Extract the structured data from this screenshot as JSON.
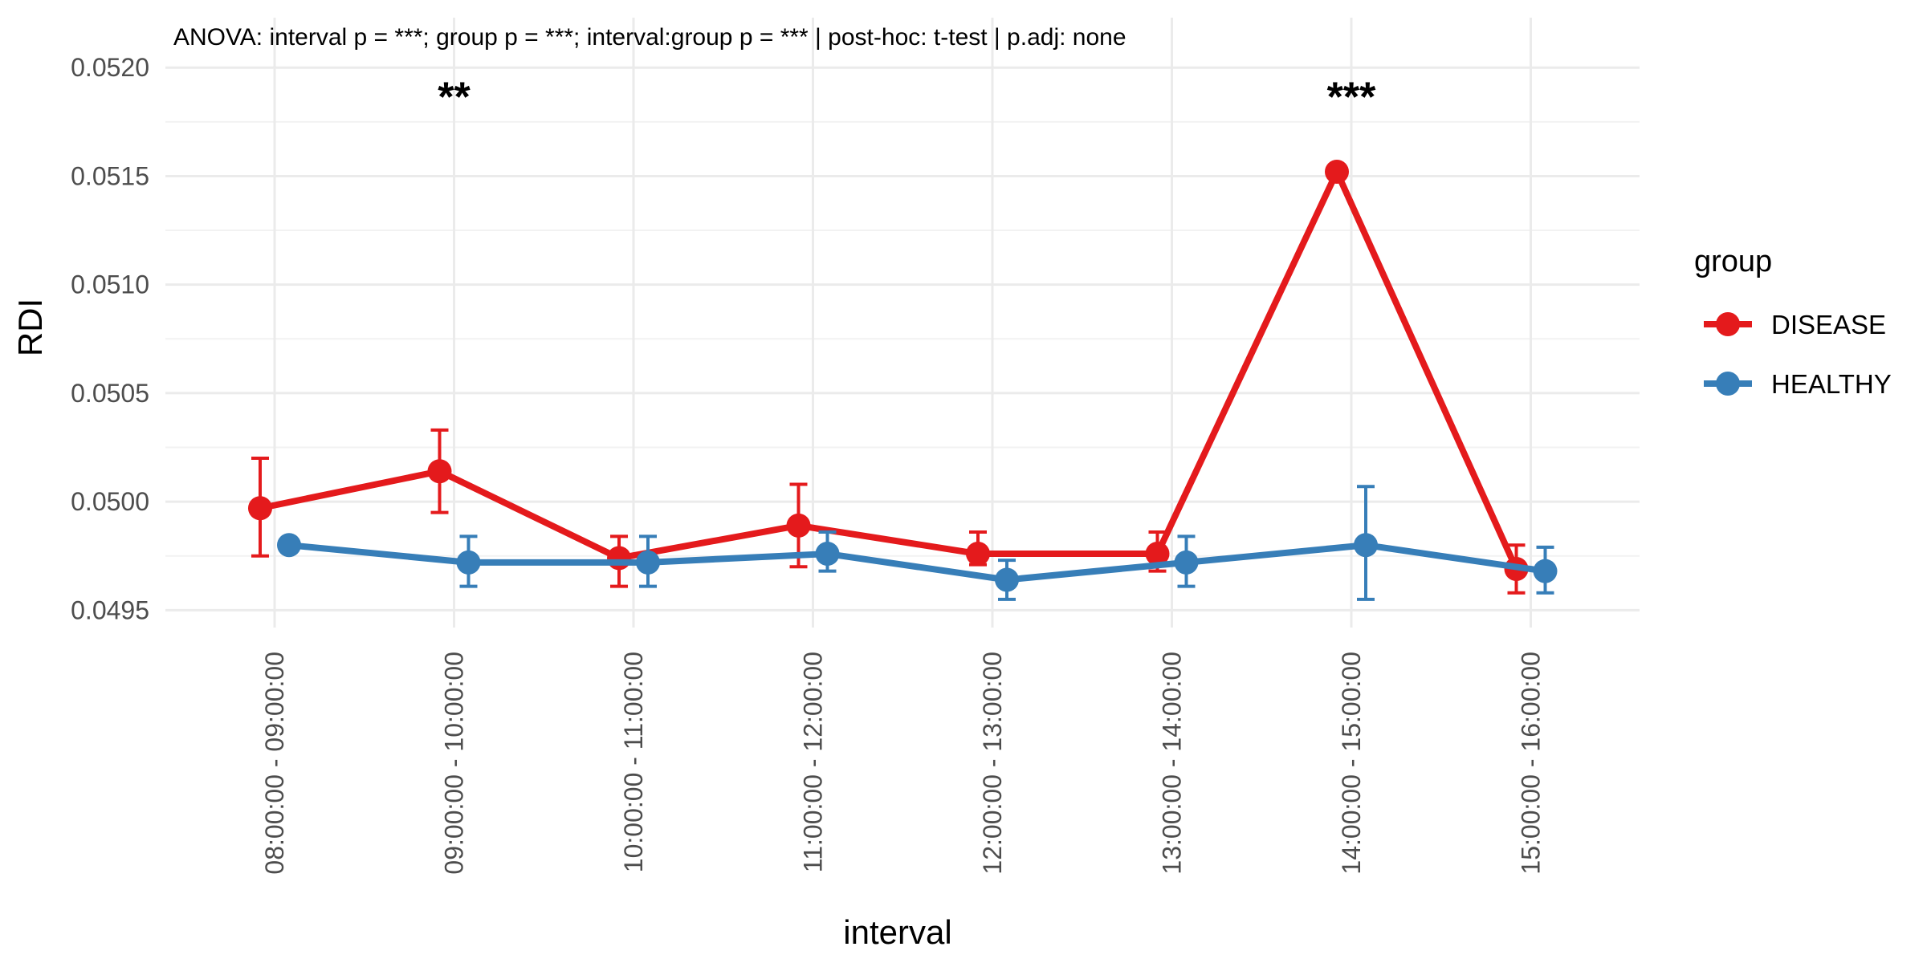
{
  "annotation": "ANOVA: interval p = ***;  group p = ***;  interval:group p = ***  |  post-hoc: t-test  |  p.adj: none",
  "chart_data": {
    "type": "line",
    "xlabel": "interval",
    "ylabel": "RDI",
    "categories": [
      "08:00:00 - 09:00:00",
      "09:00:00 - 10:00:00",
      "10:00:00 - 11:00:00",
      "11:00:00 - 12:00:00",
      "12:00:00 - 13:00:00",
      "13:00:00 - 14:00:00",
      "14:00:00 - 15:00:00",
      "15:00:00 - 16:00:00"
    ],
    "ylim": [
      0.04942,
      0.05223
    ],
    "yticks": [
      0.0495,
      0.05,
      0.0505,
      0.051,
      0.0515,
      0.052
    ],
    "ytick_labels": [
      "0.0495",
      "0.0500",
      "0.0505",
      "0.0510",
      "0.0515",
      "0.0520"
    ],
    "grid": true,
    "legend": {
      "title": "group",
      "position": "right"
    },
    "series": [
      {
        "name": "DISEASE",
        "color": "#E41A1C",
        "values": [
          0.04997,
          0.05014,
          0.04974,
          0.04989,
          0.04976,
          0.04976,
          0.05152,
          0.04969
        ],
        "err_low": [
          0.04975,
          0.04995,
          0.04961,
          0.0497,
          0.04971,
          0.04968,
          null,
          0.04958
        ],
        "err_high": [
          0.0502,
          0.05033,
          0.04984,
          0.05008,
          0.04986,
          0.04986,
          null,
          0.0498
        ]
      },
      {
        "name": "HEALTHY",
        "color": "#377EB8",
        "values": [
          0.0498,
          0.04972,
          0.04972,
          0.04976,
          0.04964,
          0.04972,
          0.0498,
          0.04968
        ],
        "err_low": [
          null,
          0.04961,
          0.04961,
          0.04968,
          0.04955,
          0.04961,
          0.04955,
          0.04958
        ],
        "err_high": [
          null,
          0.04984,
          0.04984,
          0.04986,
          0.04973,
          0.04984,
          0.05007,
          0.04979
        ]
      }
    ],
    "significance": [
      {
        "category_index": 1,
        "label": "**",
        "y": 0.05188
      },
      {
        "category_index": 6,
        "label": "***",
        "y": 0.05188
      }
    ]
  }
}
